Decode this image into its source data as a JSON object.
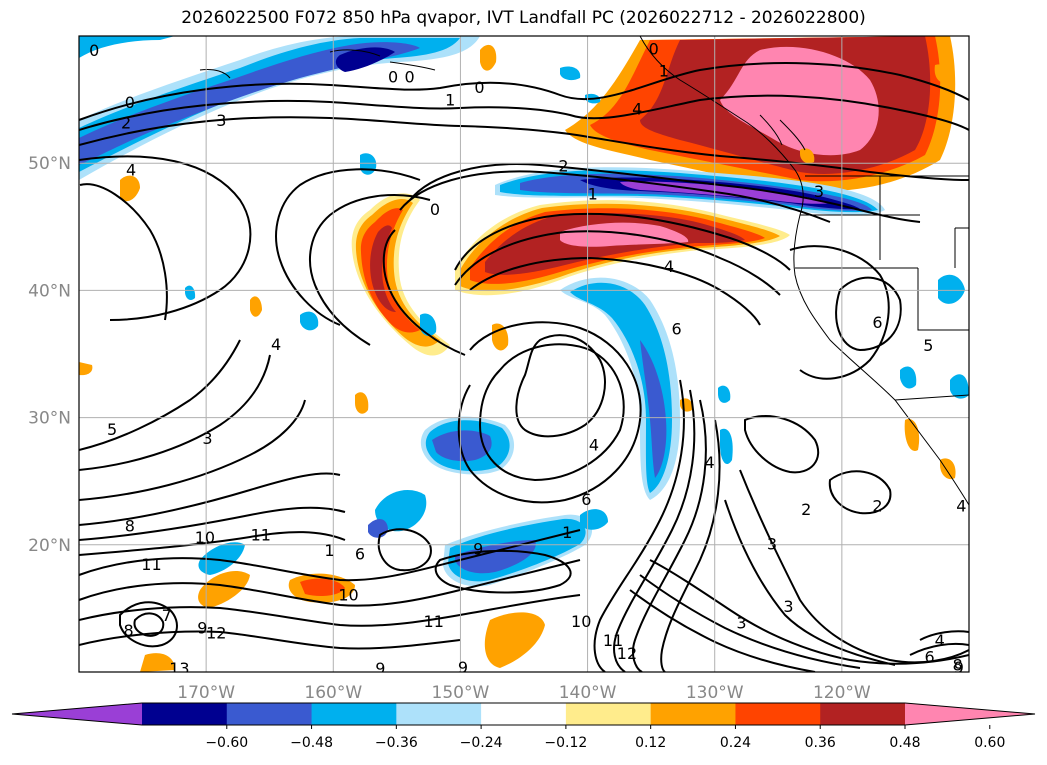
{
  "title": "2026022500 F072 850 hPa qvapor, IVT Landfall PC (2026022712 - 2026022800)",
  "map": {
    "lon_range": [
      -180,
      -110
    ],
    "lat_range": [
      10,
      60
    ],
    "lat_ticks": [
      {
        "value": 20,
        "label": "20°N"
      },
      {
        "value": 30,
        "label": "30°N"
      },
      {
        "value": 40,
        "label": "40°N"
      },
      {
        "value": 50,
        "label": "50°N"
      }
    ],
    "lon_ticks": [
      {
        "value": -170,
        "label": "170°W"
      },
      {
        "value": -160,
        "label": "160°W"
      },
      {
        "value": -150,
        "label": "150°W"
      },
      {
        "value": -140,
        "label": "140°W"
      },
      {
        "value": -130,
        "label": "130°W"
      },
      {
        "value": -120,
        "label": "120°W"
      }
    ],
    "grid": true
  },
  "colorbar": {
    "extend": "both",
    "colors": [
      "#9a3fd6",
      "#000090",
      "#3a5ad0",
      "#00b0ee",
      "#ade1fa",
      "#ffffff",
      "#ffec8c",
      "#ffa200",
      "#ff4400",
      "#b22222",
      "#ff85b0"
    ],
    "labels": [
      "−0.60",
      "−0.48",
      "−0.36",
      "−0.24",
      "−0.12",
      "0.12",
      "0.24",
      "0.36",
      "0.48",
      "0.60"
    ]
  },
  "contour_labels": [
    {
      "text": "0",
      "lon": -178.8,
      "lat": 58.9
    },
    {
      "text": "0",
      "lon": -155.3,
      "lat": 56.8
    },
    {
      "text": "0",
      "lon": -154.0,
      "lat": 56.8
    },
    {
      "text": "0",
      "lon": -148.5,
      "lat": 56.0
    },
    {
      "text": "1",
      "lon": -150.8,
      "lat": 55.0
    },
    {
      "text": "0",
      "lon": -176.0,
      "lat": 54.8
    },
    {
      "text": "2",
      "lon": -176.3,
      "lat": 53.2
    },
    {
      "text": "3",
      "lon": -168.8,
      "lat": 53.4
    },
    {
      "text": "4",
      "lon": -175.9,
      "lat": 49.5
    },
    {
      "text": "0",
      "lon": -134.8,
      "lat": 59.0
    },
    {
      "text": "1",
      "lon": -134.0,
      "lat": 57.3
    },
    {
      "text": "4",
      "lon": -136.1,
      "lat": 54.3
    },
    {
      "text": "2",
      "lon": -141.9,
      "lat": 49.8
    },
    {
      "text": "1",
      "lon": -139.6,
      "lat": 47.6
    },
    {
      "text": "0",
      "lon": -152.0,
      "lat": 46.4
    },
    {
      "text": "3",
      "lon": -121.8,
      "lat": 47.8
    },
    {
      "text": "4",
      "lon": -133.6,
      "lat": 41.9
    },
    {
      "text": "6",
      "lon": -133.0,
      "lat": 37.0
    },
    {
      "text": "6",
      "lon": -117.2,
      "lat": 37.5
    },
    {
      "text": "4",
      "lon": -164.5,
      "lat": 35.8
    },
    {
      "text": "5",
      "lon": -177.4,
      "lat": 29.1
    },
    {
      "text": "3",
      "lon": -169.9,
      "lat": 28.4
    },
    {
      "text": "4",
      "lon": -139.5,
      "lat": 27.9
    },
    {
      "text": "4",
      "lon": -130.4,
      "lat": 26.5
    },
    {
      "text": "6",
      "lon": -140.1,
      "lat": 23.6
    },
    {
      "text": "1",
      "lon": -141.6,
      "lat": 21.0
    },
    {
      "text": "2",
      "lon": -122.8,
      "lat": 22.8
    },
    {
      "text": "2",
      "lon": -117.2,
      "lat": 23.1
    },
    {
      "text": "3",
      "lon": -125.5,
      "lat": 20.1
    },
    {
      "text": "8",
      "lon": -176.0,
      "lat": 21.5
    },
    {
      "text": "10",
      "lon": -170.1,
      "lat": 20.6
    },
    {
      "text": "11",
      "lon": -165.7,
      "lat": 20.8
    },
    {
      "text": "11",
      "lon": -174.3,
      "lat": 18.5
    },
    {
      "text": "1",
      "lon": -160.3,
      "lat": 19.6
    },
    {
      "text": "6",
      "lon": -157.9,
      "lat": 19.3
    },
    {
      "text": "9",
      "lon": -148.6,
      "lat": 19.7
    },
    {
      "text": "10",
      "lon": -158.8,
      "lat": 16.1
    },
    {
      "text": "3",
      "lon": -127.9,
      "lat": 13.9
    },
    {
      "text": "3",
      "lon": -124.2,
      "lat": 15.2
    },
    {
      "text": "7",
      "lon": -173.1,
      "lat": 14.5
    },
    {
      "text": "9",
      "lon": -170.3,
      "lat": 13.5
    },
    {
      "text": "8",
      "lon": -176.1,
      "lat": 13.3
    },
    {
      "text": "11",
      "lon": -152.1,
      "lat": 14.0
    },
    {
      "text": "12",
      "lon": -169.2,
      "lat": 13.1
    },
    {
      "text": "10",
      "lon": -140.5,
      "lat": 14.0
    },
    {
      "text": "11",
      "lon": -138.0,
      "lat": 12.5
    },
    {
      "text": "12",
      "lon": -136.9,
      "lat": 11.5
    },
    {
      "text": "13",
      "lon": -172.1,
      "lat": 10.3
    },
    {
      "text": "9",
      "lon": -156.3,
      "lat": 10.3
    },
    {
      "text": "9",
      "lon": -149.8,
      "lat": 10.4
    },
    {
      "text": "4",
      "lon": -112.3,
      "lat": 12.5
    },
    {
      "text": "6",
      "lon": -113.1,
      "lat": 11.2
    },
    {
      "text": "8",
      "lon": -110.9,
      "lat": 10.6
    },
    {
      "text": "9",
      "lon": -110.8,
      "lat": 10.4
    },
    {
      "text": "4",
      "lon": -110.6,
      "lat": 23.1
    },
    {
      "text": "5",
      "lon": -113.2,
      "lat": 35.7
    }
  ]
}
